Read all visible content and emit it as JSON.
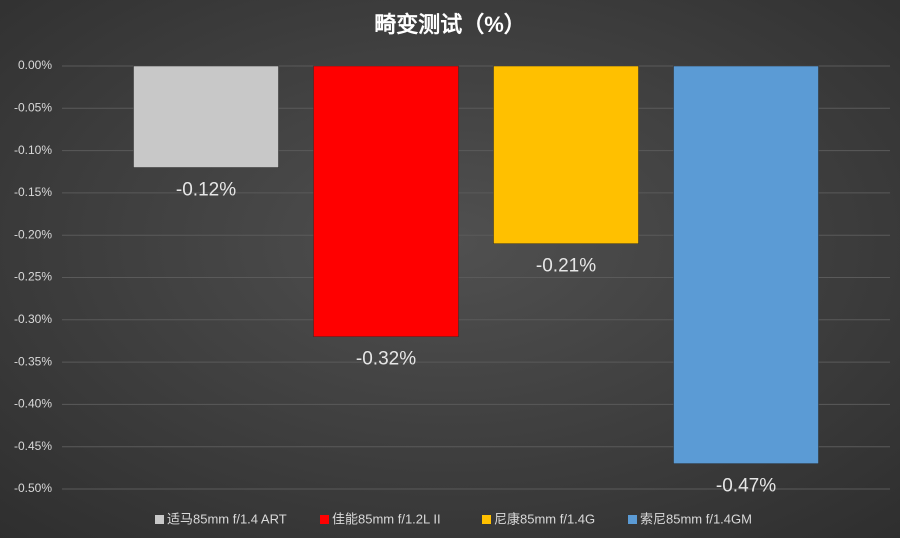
{
  "chart_data": {
    "type": "bar",
    "title": "畸变测试（%）",
    "categories": [
      null
    ],
    "series": [
      {
        "name": "适马85mm f/1.4 ART",
        "color": "#c8c8c8",
        "values": [
          -0.12
        ],
        "value_labels": [
          "-0.12%"
        ]
      },
      {
        "name": "佳能85mm f/1.2L II",
        "color": "#ff0000",
        "values": [
          -0.32
        ],
        "value_labels": [
          "-0.32%"
        ]
      },
      {
        "name": "尼康85mm f/1.4G",
        "color": "#ffc000",
        "values": [
          -0.21
        ],
        "value_labels": [
          "-0.21%"
        ]
      },
      {
        "name": "索尼85mm f/1.4GM",
        "color": "#5b9bd5",
        "values": [
          -0.47
        ],
        "value_labels": [
          "-0.47%"
        ]
      }
    ],
    "ylim": [
      -0.5,
      0
    ],
    "yticks": [
      {
        "value": 0,
        "label": "0.00%"
      },
      {
        "value": -0.05,
        "label": "-0.05%"
      },
      {
        "value": -0.1,
        "label": "-0.10%"
      },
      {
        "value": -0.15,
        "label": "-0.15%"
      },
      {
        "value": -0.2,
        "label": "-0.20%"
      },
      {
        "value": -0.25,
        "label": "-0.25%"
      },
      {
        "value": -0.3,
        "label": "-0.30%"
      },
      {
        "value": -0.35,
        "label": "-0.35%"
      },
      {
        "value": -0.4,
        "label": "-0.40%"
      },
      {
        "value": -0.45,
        "label": "-0.45%"
      },
      {
        "value": -0.5,
        "label": "-0.50%"
      }
    ],
    "grid": true
  }
}
